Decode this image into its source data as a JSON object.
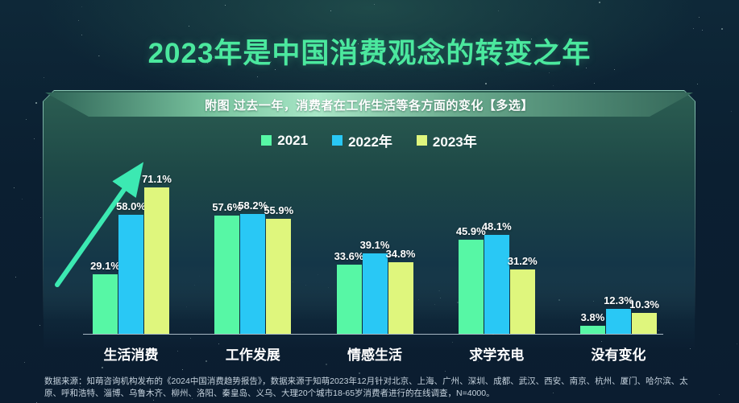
{
  "header": {
    "title": "2023年是中国消费观念的转变之年",
    "accent_color": "#4be89e"
  },
  "chart_data": {
    "type": "bar",
    "title": "附图 过去一年，消费者在工作生活等各方面的变化【多选】",
    "categories": [
      "生活消费",
      "工作发展",
      "情感生活",
      "求学充电",
      "没有变化"
    ],
    "series": [
      {
        "name": "2021",
        "color": "#57f7a5",
        "values": [
          29.1,
          57.6,
          33.6,
          45.9,
          3.8
        ]
      },
      {
        "name": "2022年",
        "color": "#29c8f5",
        "values": [
          58.0,
          58.2,
          39.1,
          48.1,
          12.3
        ]
      },
      {
        "name": "2023年",
        "color": "#dff67d",
        "values": [
          71.1,
          55.9,
          34.8,
          31.2,
          10.3
        ]
      }
    ],
    "value_suffix": "%",
    "ylim": [
      0,
      75
    ],
    "grid": false,
    "legend_position": "top",
    "annotation": {
      "icon": "upward-trend-arrow",
      "color": "#3ce9b2",
      "target_category": "生活消费"
    }
  },
  "footer": {
    "source": "数据来源：知萌咨询机构发布的《2024中国消费趋势报告》，数据来源于知萌2023年12月针对北京、上海、广州、深圳、成都、武汉、西安、南京、杭州、厦门、哈尔滨、太原、呼和浩特、淄博、乌鲁木齐、柳州、洛阳、秦皇岛、义乌、大理20个城市18-65岁消费者进行的在线调查，N=4000。"
  }
}
